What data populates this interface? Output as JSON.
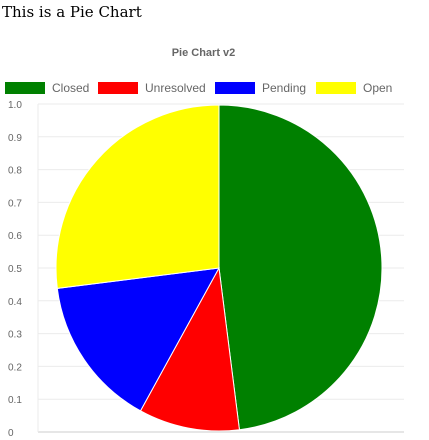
{
  "page": {
    "heading": "This is a Pie Chart"
  },
  "chart_data": {
    "type": "pie",
    "title": "Pie Chart v2",
    "categories": [
      "Closed",
      "Unresolved",
      "Pending",
      "Open"
    ],
    "values": [
      48,
      10,
      15,
      27
    ],
    "colors": [
      "#008000",
      "#ff0000",
      "#0000ff",
      "#ffff00"
    ],
    "legend_position": "top",
    "y_axis": {
      "range": [
        0,
        1
      ],
      "tick_labels": [
        "1.0",
        "0.9",
        "0.8",
        "0.7",
        "0.6",
        "0.5",
        "0.4",
        "0.3",
        "0.2",
        "0.1",
        "0"
      ]
    },
    "grid": true
  }
}
